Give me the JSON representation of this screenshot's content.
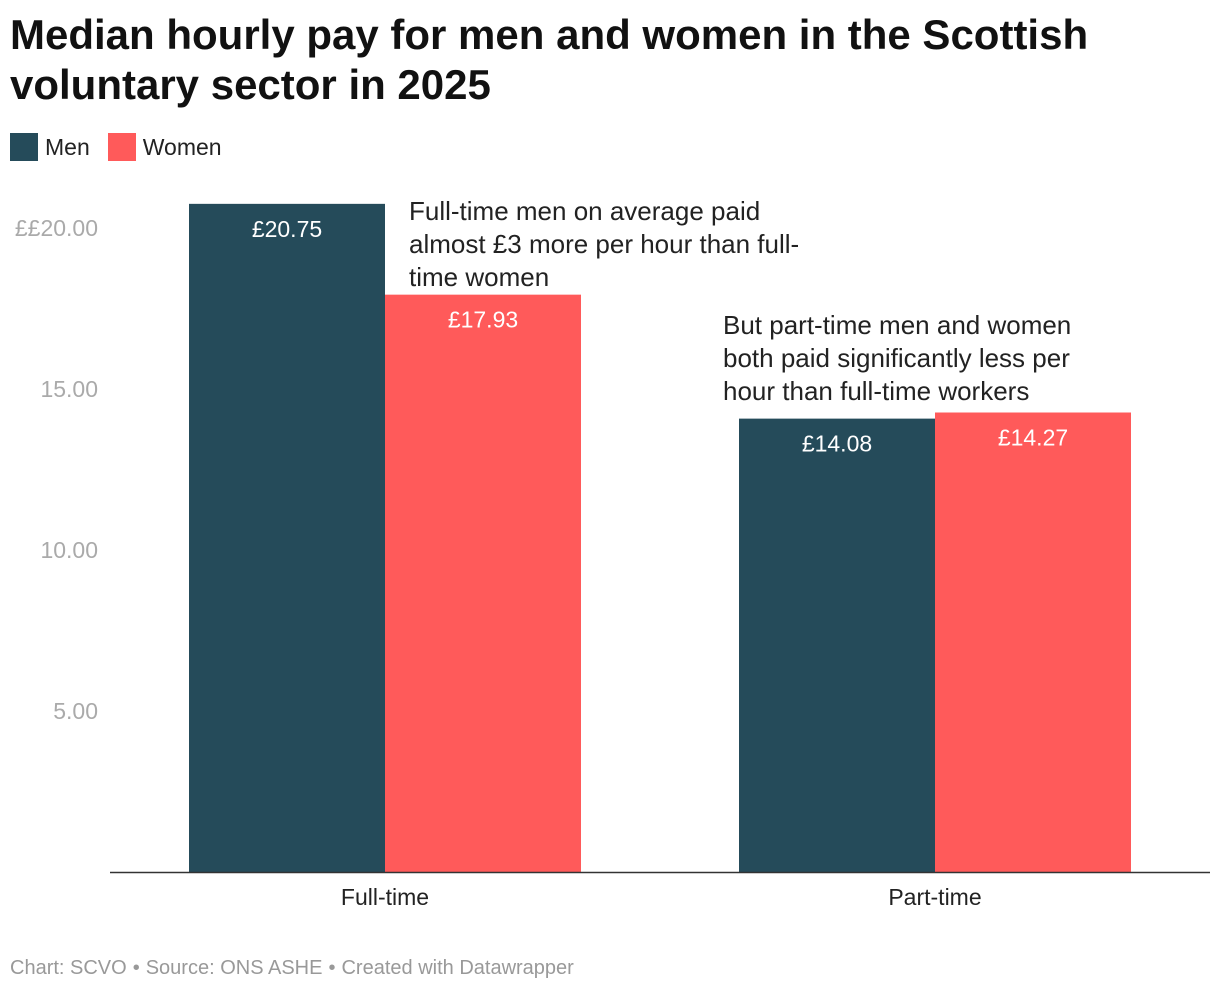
{
  "title": "Median hourly pay for men and women in the Scottish voluntary sector in 2025",
  "legend": [
    {
      "label": "Men",
      "color": "#254B5A"
    },
    {
      "label": "Women",
      "color": "#FF5A5A"
    }
  ],
  "chart_data": {
    "type": "bar",
    "categories": [
      "Full-time",
      "Part-time"
    ],
    "series": [
      {
        "name": "Men",
        "values": [
          20.75,
          14.08
        ],
        "labels": [
          "£20.75",
          "£14.08"
        ],
        "color": "#254B5A"
      },
      {
        "name": "Women",
        "values": [
          17.93,
          14.27
        ],
        "labels": [
          "£17.93",
          "£14.27"
        ],
        "color": "#FF5A5A"
      }
    ],
    "ylim": [
      0,
      22
    ],
    "yticks": [
      {
        "value": 20,
        "label": "££20.00"
      },
      {
        "value": 15,
        "label": "15.00"
      },
      {
        "value": 10,
        "label": "10.00"
      },
      {
        "value": 5,
        "label": "5.00"
      }
    ],
    "grid": false,
    "annotations": [
      {
        "text": "Full-time men on average paid almost £3 more per hour than full-time women",
        "lines": [
          "Full-time men on average paid",
          "almost £3 more per hour than full-",
          "time women"
        ]
      },
      {
        "text": "But part-time men and women both paid significantly less per hour than full-time workers",
        "lines": [
          "But part-time men and women",
          "both paid significantly less per",
          "hour than full-time workers"
        ]
      }
    ]
  },
  "footer": {
    "chart": "Chart: SCVO",
    "source": "Source: ONS ASHE",
    "created": "Created with Datawrapper",
    "separator": "•"
  }
}
